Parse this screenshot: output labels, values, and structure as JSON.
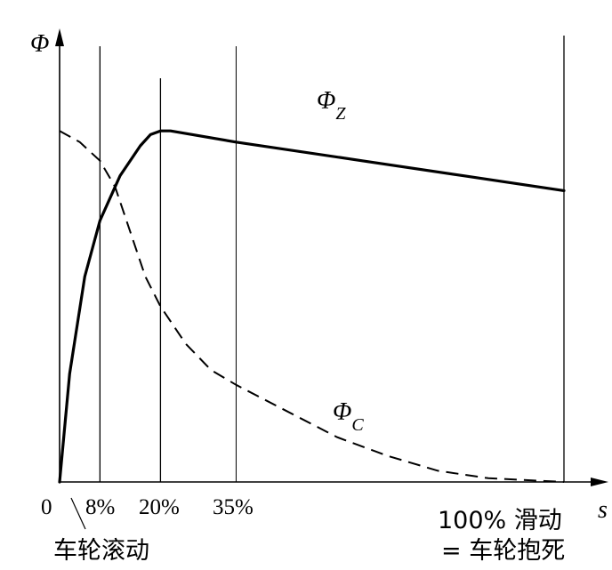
{
  "chart_data": {
    "type": "line",
    "x_label": "s",
    "y_label": "Φ",
    "x_unit": "%",
    "xlim": [
      0,
      100
    ],
    "ylim": [
      0,
      1
    ],
    "y_ticks_shown": false,
    "grid": false,
    "origin_label": "0",
    "x_tick_labels": [
      "8%",
      "20%",
      "35%"
    ],
    "end_label": "100% 滑动",
    "end_label_2": "= 车轮抱死",
    "rolling_label": "车轮滚动",
    "reference_lines_at": [
      8,
      20,
      35,
      100
    ],
    "series": [
      {
        "name": "ΦZ",
        "name_main": "Φ",
        "name_sub": "Z",
        "style": "solid",
        "color": "#000000",
        "points": [
          [
            0,
            0
          ],
          [
            2,
            0.29
          ],
          [
            5,
            0.55
          ],
          [
            8,
            0.7
          ],
          [
            12,
            0.82
          ],
          [
            16,
            0.9
          ],
          [
            18,
            0.93
          ],
          [
            20,
            0.94
          ],
          [
            22,
            0.94
          ],
          [
            35,
            0.91
          ],
          [
            60,
            0.86
          ],
          [
            80,
            0.82
          ],
          [
            100,
            0.78
          ]
        ]
      },
      {
        "name": "ΦC",
        "name_main": "Φ",
        "name_sub": "C",
        "style": "dashed",
        "color": "#000000",
        "points": [
          [
            0,
            0.94
          ],
          [
            4,
            0.91
          ],
          [
            8,
            0.86
          ],
          [
            11,
            0.79
          ],
          [
            14,
            0.67
          ],
          [
            17,
            0.55
          ],
          [
            20,
            0.47
          ],
          [
            25,
            0.37
          ],
          [
            30,
            0.3
          ],
          [
            35,
            0.26
          ],
          [
            45,
            0.19
          ],
          [
            55,
            0.12
          ],
          [
            65,
            0.07
          ],
          [
            75,
            0.03
          ],
          [
            85,
            0.01
          ],
          [
            100,
            0.0
          ]
        ]
      }
    ]
  }
}
